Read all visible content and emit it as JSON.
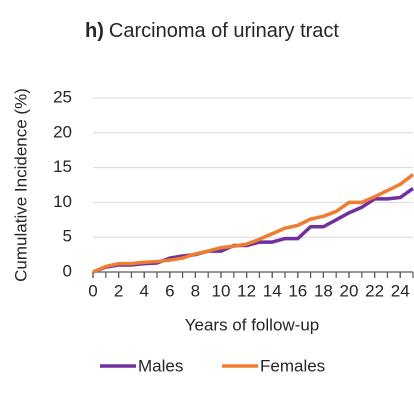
{
  "chart_data": {
    "type": "line",
    "panel_label": "h)",
    "title": "Carcinoma of urinary tract",
    "x_label": "Years of follow-up",
    "y_label": "Cumulative Incidence (%)",
    "x": [
      0,
      1,
      2,
      3,
      4,
      5,
      6,
      7,
      8,
      9,
      10,
      11,
      12,
      13,
      14,
      15,
      16,
      17,
      18,
      19,
      20,
      21,
      22,
      23,
      24,
      25
    ],
    "xlim": [
      0,
      25
    ],
    "xticks": [
      0,
      2,
      4,
      6,
      8,
      10,
      12,
      14,
      16,
      18,
      20,
      22,
      24
    ],
    "ylim": [
      0,
      25
    ],
    "yticks": [
      0,
      5,
      10,
      15,
      20,
      25
    ],
    "grid": true,
    "legend": "bottom",
    "series": [
      {
        "name": "Males",
        "color": "#7030a0",
        "values": [
          0,
          0.7,
          1,
          1,
          1.2,
          1.3,
          2,
          2.3,
          2.5,
          3,
          3,
          3.8,
          3.8,
          4.3,
          4.3,
          4.8,
          4.8,
          6.5,
          6.5,
          7.5,
          8.5,
          9.3,
          10.5,
          10.5,
          10.7,
          12
        ]
      },
      {
        "name": "Females",
        "color": "#ed7d31",
        "values": [
          0,
          0.8,
          1.2,
          1.2,
          1.4,
          1.5,
          1.7,
          2,
          2.6,
          3,
          3.5,
          3.7,
          4,
          4.7,
          5.5,
          6.3,
          6.7,
          7.6,
          8,
          8.7,
          10,
          10,
          10.8,
          11.7,
          12.6,
          14
        ]
      }
    ]
  }
}
